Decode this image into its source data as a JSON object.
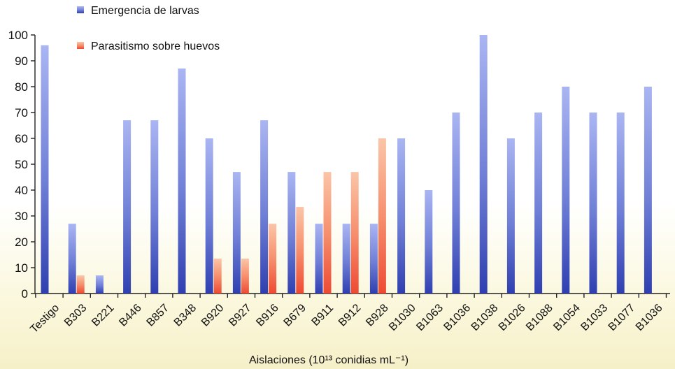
{
  "chart_data": {
    "type": "bar",
    "title": "",
    "xlabel": "Aislaciones (10¹³ conidias mL⁻¹)",
    "ylabel": "",
    "ylim": [
      0,
      100
    ],
    "yticks": [
      0,
      10,
      20,
      30,
      40,
      50,
      60,
      70,
      80,
      90,
      100
    ],
    "grid": false,
    "legend_position": "top-left",
    "categories": [
      "Testigo",
      "B303",
      "B221",
      "B446",
      "B857",
      "B348",
      "B920",
      "B927",
      "B916",
      "B679",
      "B911",
      "B912",
      "B928",
      "B1030",
      "B1063",
      "B1036",
      "B1038",
      "B1026",
      "B1088",
      "B1054",
      "B1033",
      "B1077",
      "B1036"
    ],
    "series": [
      {
        "name": "Emergencia de larvas",
        "color": "#6f7fd6",
        "values": [
          96,
          27,
          7,
          67,
          67,
          87,
          60,
          47,
          67,
          47,
          27,
          27,
          27,
          60,
          40,
          70,
          100,
          60,
          70,
          80,
          70,
          70,
          80
        ]
      },
      {
        "name": "Parasitismo sobre huevos",
        "color": "#f3866a",
        "values": [
          0,
          7,
          0,
          0,
          0,
          0,
          13.5,
          13.5,
          27,
          33.5,
          47,
          47,
          60,
          0,
          0,
          0,
          0,
          0,
          0,
          0,
          0,
          0,
          0
        ]
      }
    ]
  }
}
